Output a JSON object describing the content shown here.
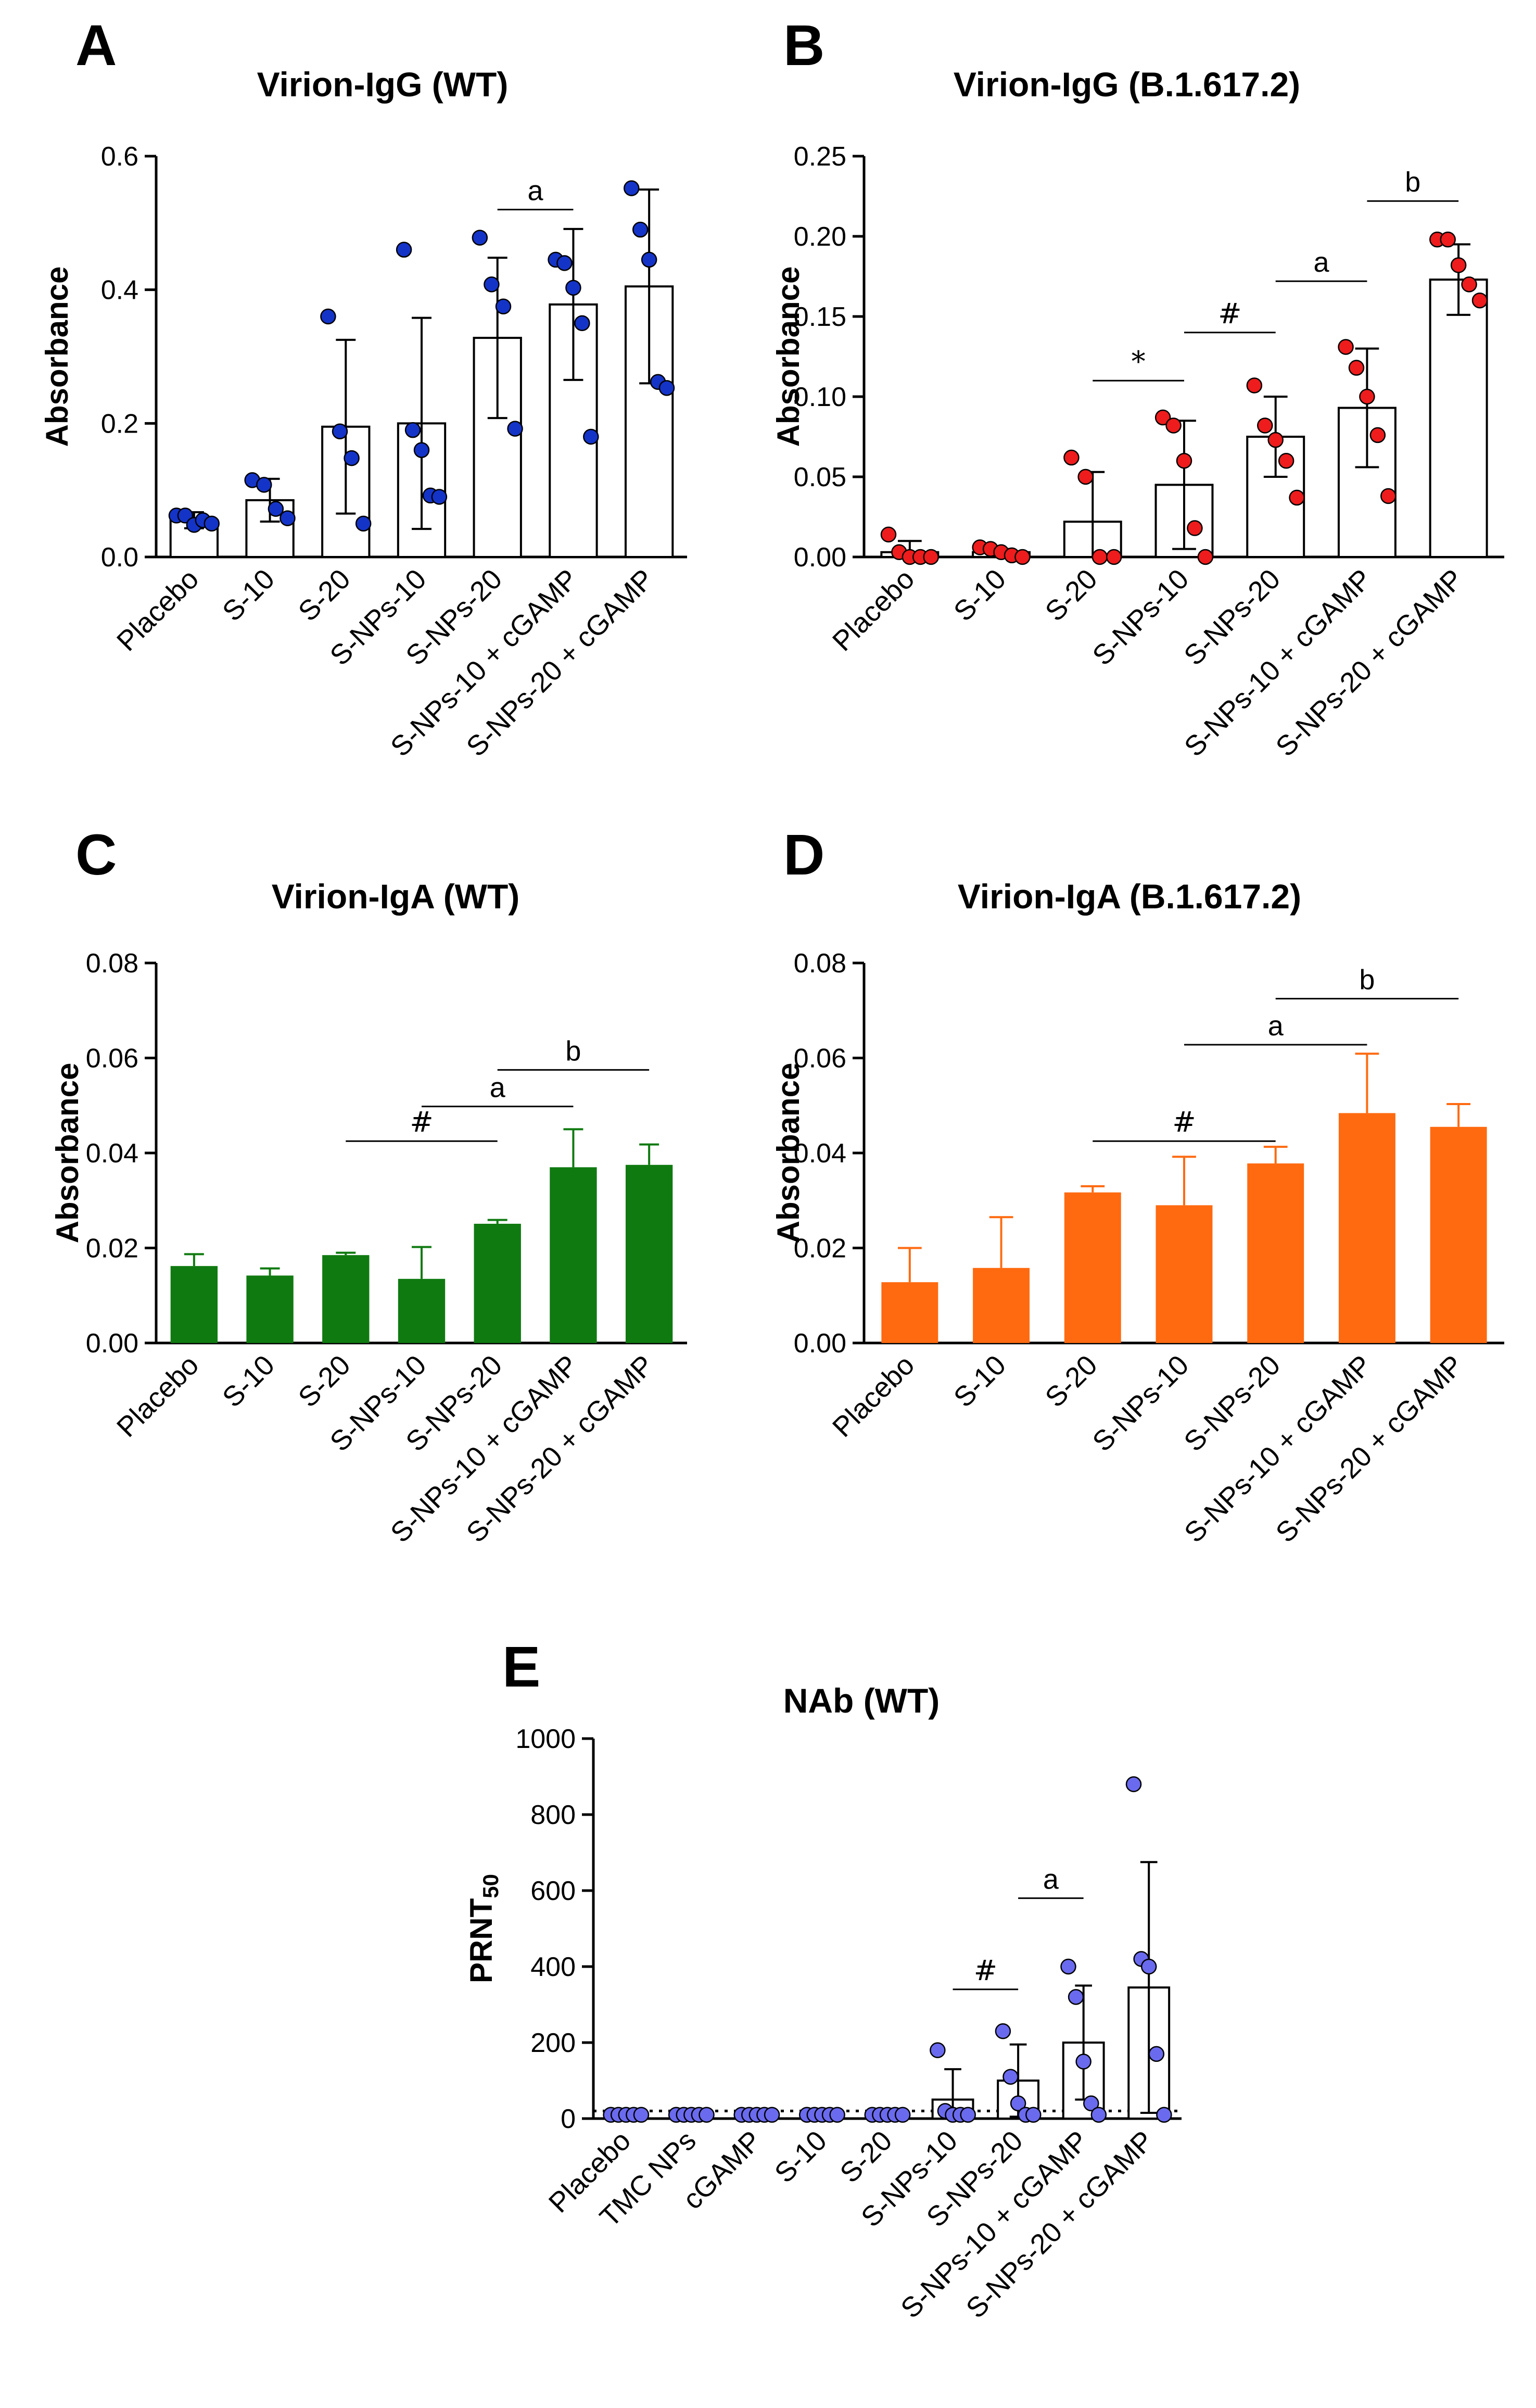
{
  "figure": {
    "background": "#ffffff"
  },
  "chart_data": [
    {
      "panel": "A",
      "type": "bar",
      "style": "dot",
      "title": "Virion-IgG (WT)",
      "ylabel": "Absorbance",
      "ylim": [
        0,
        0.6
      ],
      "yticks": [
        "0.0",
        "0.2",
        "0.4",
        "0.6"
      ],
      "ytick_values": [
        0,
        0.2,
        0.4,
        0.6
      ],
      "categories": [
        "Placebo",
        "S-10",
        "S-20",
        "S-NPs-10",
        "S-NPs-20",
        "S-NPs-10 + cGAMP",
        "S-NPs-20 + cGAMP"
      ],
      "values": [
        0.055,
        0.085,
        0.195,
        0.2,
        0.328,
        0.378,
        0.405
      ],
      "sd": [
        0.012,
        0.032,
        0.13,
        0.158,
        0.12,
        0.113,
        0.145
      ],
      "points": [
        [
          0.062,
          0.062,
          0.048,
          0.055,
          0.05
        ],
        [
          0.115,
          0.108,
          0.072,
          0.058
        ],
        [
          0.36,
          0.188,
          0.148,
          0.05
        ],
        [
          0.46,
          0.19,
          0.16,
          0.092,
          0.09
        ],
        [
          0.478,
          0.408,
          0.375,
          0.192
        ],
        [
          0.445,
          0.44,
          0.403,
          0.35,
          0.18
        ],
        [
          0.552,
          0.49,
          0.445,
          0.262,
          0.253
        ]
      ],
      "color": "#1434c8",
      "sig": [
        {
          "label": "a",
          "from": 4,
          "to": 5,
          "y": 0.52
        }
      ]
    },
    {
      "panel": "B",
      "type": "bar",
      "style": "dot",
      "title": "Virion-IgG (B.1.617.2)",
      "ylabel": "Absorbance",
      "ylim": [
        0,
        0.25
      ],
      "yticks": [
        "0.00",
        "0.05",
        "0.10",
        "0.15",
        "0.20",
        "0.25"
      ],
      "ytick_values": [
        0,
        0.05,
        0.1,
        0.15,
        0.2,
        0.25
      ],
      "categories": [
        "Placebo",
        "S-10",
        "S-20",
        "S-NPs-10",
        "S-NPs-20",
        "S-NPs-10 + cGAMP",
        "S-NPs-20 + cGAMP"
      ],
      "values": [
        0.003,
        0.003,
        0.022,
        0.045,
        0.075,
        0.093,
        0.173
      ],
      "sd": [
        0.007,
        0.002,
        0.031,
        0.04,
        0.025,
        0.037,
        0.022
      ],
      "points": [
        [
          0.014,
          0.003,
          0,
          0,
          0
        ],
        [
          0.006,
          0.005,
          0.003,
          0.001,
          0
        ],
        [
          0.062,
          0.05,
          0,
          0
        ],
        [
          0.087,
          0.082,
          0.06,
          0.018,
          0
        ],
        [
          0.107,
          0.082,
          0.073,
          0.06,
          0.037
        ],
        [
          0.131,
          0.118,
          0.1,
          0.076,
          0.038
        ],
        [
          0.198,
          0.198,
          0.182,
          0.17,
          0.16
        ]
      ],
      "color": "#ee1c1c",
      "sig": [
        {
          "label": "*",
          "from": 2,
          "to": 3,
          "y": 0.11
        },
        {
          "label": "#",
          "from": 3,
          "to": 4,
          "y": 0.14
        },
        {
          "label": "a",
          "from": 4,
          "to": 5,
          "y": 0.172
        },
        {
          "label": "b",
          "from": 5,
          "to": 6,
          "y": 0.222
        }
      ]
    },
    {
      "panel": "C",
      "type": "bar",
      "style": "filled",
      "title": "Virion-IgA (WT)",
      "ylabel": "Absorbance",
      "ylim": [
        0,
        0.08
      ],
      "yticks": [
        "0.00",
        "0.02",
        "0.04",
        "0.06",
        "0.08"
      ],
      "ytick_values": [
        0,
        0.02,
        0.04,
        0.06,
        0.08
      ],
      "categories": [
        "Placebo",
        "S-10",
        "S-20",
        "S-NPs-10",
        "S-NPs-20",
        "S-NPs-10 + cGAMP",
        "S-NPs-20 + cGAMP"
      ],
      "values": [
        0.0162,
        0.0142,
        0.0185,
        0.0135,
        0.0251,
        0.037,
        0.0375
      ],
      "sd": [
        0.0025,
        0.0015,
        0.0005,
        0.0067,
        0.0008,
        0.008,
        0.0043
      ],
      "color": "#0f7a10",
      "sig": [
        {
          "label": "#",
          "from": 2,
          "to": 4,
          "y": 0.0425
        },
        {
          "label": "a",
          "from": 3,
          "to": 5,
          "y": 0.0498
        },
        {
          "label": "b",
          "from": 4,
          "to": 6,
          "y": 0.0575
        }
      ]
    },
    {
      "panel": "D",
      "type": "bar",
      "style": "filled",
      "title": "Virion-IgA (B.1.617.2)",
      "ylabel": "Absorbance",
      "ylim": [
        0,
        0.08
      ],
      "yticks": [
        "0.00",
        "0.02",
        "0.04",
        "0.06",
        "0.08"
      ],
      "ytick_values": [
        0,
        0.02,
        0.04,
        0.06,
        0.08
      ],
      "categories": [
        "Placebo",
        "S-10",
        "S-20",
        "S-NPs-10",
        "S-NPs-20",
        "S-NPs-10 + cGAMP",
        "S-NPs-20 + cGAMP"
      ],
      "values": [
        0.0128,
        0.0158,
        0.0317,
        0.029,
        0.0378,
        0.0484,
        0.0455
      ],
      "sd": [
        0.0072,
        0.0107,
        0.0013,
        0.0102,
        0.0035,
        0.0125,
        0.0048
      ],
      "color": "#ff6a10",
      "sig": [
        {
          "label": "#",
          "from": 2,
          "to": 4,
          "y": 0.0425
        },
        {
          "label": "a",
          "from": 3,
          "to": 5,
          "y": 0.0628
        },
        {
          "label": "b",
          "from": 4,
          "to": 6,
          "y": 0.0725
        }
      ]
    },
    {
      "panel": "E",
      "type": "bar",
      "style": "dot",
      "title": "NAb (WT)",
      "ylabel": "PRNT",
      "ylabel_sub": "50",
      "ylim": [
        0,
        1000
      ],
      "yticks": [
        "0",
        "200",
        "400",
        "600",
        "800",
        "1000"
      ],
      "ytick_values": [
        0,
        200,
        400,
        600,
        800,
        1000
      ],
      "detection_limit": 20,
      "categories": [
        "Placebo",
        "TMC NPs",
        "cGAMP",
        "S-10",
        "S-20",
        "S-NPs-10",
        "S-NPs-20",
        "S-NPs-10 + cGAMP",
        "S-NPs-20 + cGAMP"
      ],
      "values": [
        10,
        10,
        10,
        10,
        10,
        50,
        100,
        200,
        345
      ],
      "sd": [
        0,
        0,
        0,
        0,
        0,
        80,
        95,
        150,
        330
      ],
      "points": [
        [
          10,
          10,
          10,
          10,
          10
        ],
        [
          10,
          10,
          10,
          10,
          10
        ],
        [
          10,
          10,
          10,
          10,
          10
        ],
        [
          10,
          10,
          10,
          10,
          10
        ],
        [
          10,
          10,
          10,
          10,
          10
        ],
        [
          180,
          20,
          10,
          10,
          10
        ],
        [
          230,
          110,
          40,
          10,
          10
        ],
        [
          400,
          320,
          150,
          40,
          10
        ],
        [
          880,
          420,
          400,
          170,
          10
        ]
      ],
      "color": "#6a6aef",
      "sig": [
        {
          "label": "#",
          "from": 5,
          "to": 6,
          "y": 340
        },
        {
          "label": "a",
          "from": 6,
          "to": 7,
          "y": 580
        }
      ]
    }
  ]
}
